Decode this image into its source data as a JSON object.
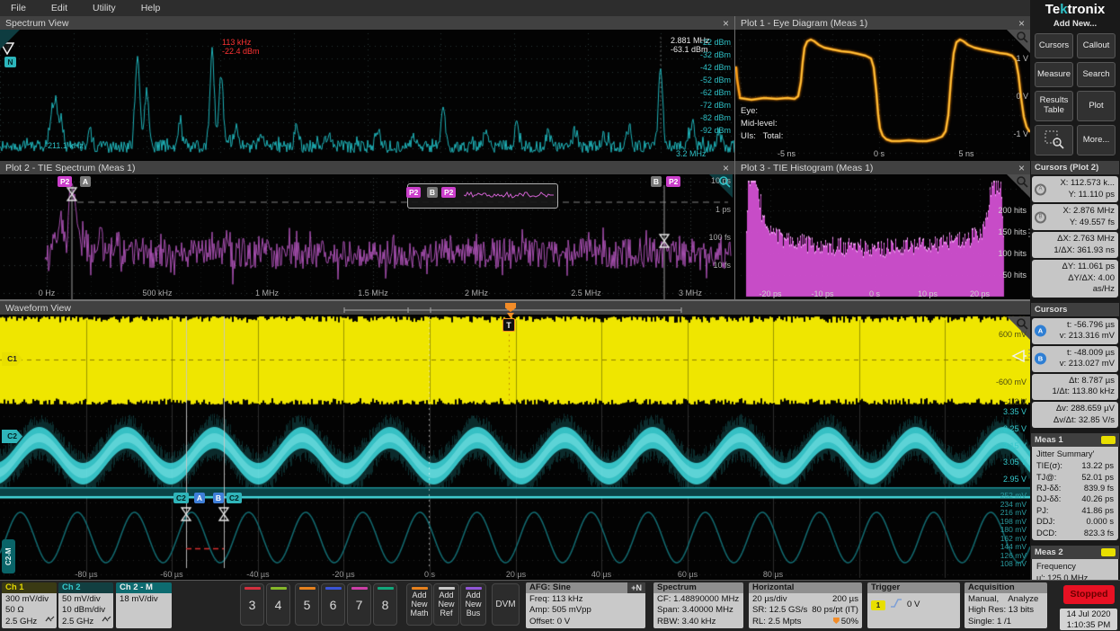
{
  "menu": {
    "items": [
      "File",
      "Edit",
      "Utility",
      "Help"
    ]
  },
  "ui": {
    "close": "×",
    "a": "A",
    "b": "B",
    "n_badge": "N",
    "r_marker": "R",
    "t_flag": "T",
    "c1": "C1",
    "c2": "C2",
    "c2m": "C2-M",
    "p2": "P2",
    "handle_dots": "⋮",
    "trig_src": "1",
    "plus_n": "+N"
  },
  "colors": {
    "ch1": "#e8df00",
    "ch2": "#2fb5ba",
    "ch2m": "#0e7074",
    "c3": "#d2303e",
    "c4": "#86b829",
    "c5": "#e8821e",
    "c6": "#3a54d6",
    "c7": "#cc3fa8",
    "c8": "#12a87c",
    "math": "#e8821e",
    "ref": "#c9c9c9",
    "bus": "#9257d8",
    "stopped_red": "#e81123",
    "trace_spectrum": "#1fb3b9",
    "trace_eye": "#ffa21a",
    "trace_tie": "#a74fb0",
    "trace_hist": "#d952d9",
    "cursor_blue": "#3f7fd9",
    "p2_magenta": "#cb3fcb",
    "marker_orange": "#f28c28"
  },
  "panels": {
    "spectrum_view": {
      "title": "Spectrum View",
      "marker_peak": {
        "freq": "113 kHz",
        "ampl": "-22.4 dBm"
      },
      "marker_ref": {
        "freq": "2.881 MHz",
        "ampl": "-63.1 dBm"
      },
      "left_edge": "-211.1 kHz",
      "right_edge": "3.2 MHz",
      "y_ticks": [
        "-22 dBm",
        "-32 dBm",
        "-42 dBm",
        "-52 dBm",
        "-62 dBm",
        "-72 dBm",
        "-82 dBm",
        "-92 dBm"
      ]
    },
    "plot1": {
      "title": "Plot 1 - Eye Diagram (Meas 1)",
      "labels": [
        "Eye:",
        "Mid-level:",
        "UIs:   Total:"
      ],
      "x_ticks": [
        "-5 ns",
        "0 s",
        "5 ns"
      ],
      "y_ticks": [
        "1 V",
        "0 V",
        "-1 V"
      ]
    },
    "plot2": {
      "title": "Plot 2 - TIE Spectrum (Meas 1)",
      "x_ticks": [
        "0 Hz",
        "500 kHz",
        "1 MHz",
        "1.5 MHz",
        "2 MHz",
        "2.5 MHz",
        "3 MHz"
      ],
      "y_ticks": [
        "10 ps",
        "1 ps",
        "100 fs",
        "10 fs"
      ]
    },
    "plot3": {
      "title": "Plot 3 - TIE Histogram (Meas 1)",
      "x_ticks": [
        "-20 ps",
        "-10 ps",
        "0 s",
        "10 ps",
        "20 ps"
      ],
      "y_ticks": [
        "200 hits",
        "150 hits",
        "100 hits",
        "50 hits"
      ]
    },
    "waveform": {
      "title": "Waveform View",
      "c1_scale": [
        "600 mV",
        "-600 mV",
        "-1.2 V"
      ],
      "c2_scale": [
        "3.35 V",
        "3.25 V",
        "3.15 V",
        "3.05 V",
        "2.95 V"
      ],
      "c2m_scale": [
        "252 mV",
        "234 mV",
        "216 mV",
        "198 mV",
        "180 mV",
        "162 mV",
        "144 mV",
        "126 mV",
        "108 mV"
      ],
      "x_ticks": [
        "-80 µs",
        "-60 µs",
        "-40 µs",
        "-20 µs",
        "0 s",
        "20 µs",
        "40 µs",
        "60 µs",
        "80 µs"
      ]
    }
  },
  "sidebar": {
    "brand_parts": [
      "Te",
      "k",
      "tronix"
    ],
    "add_new": "Add New...",
    "buttons": [
      "Cursors",
      "Callout",
      "Measure",
      "Search",
      "Results Table",
      "Plot",
      "",
      "More..."
    ],
    "cursors_plot2": {
      "title": "Cursors (Plot 2)",
      "a_x": "X: 112.573 k...",
      "a_y": "Y: 11.110 ps",
      "b_x": "X: 2.876 MHz",
      "b_y": "Y: 49.557 fs",
      "dx": "ΔX: 2.763 MHz",
      "inv_dx": "1/ΔX: 361.93 ns",
      "dy": "ΔY: 11.061 ps",
      "dydx": "ΔY/ΔX: 4.00 as/Hz"
    },
    "cursors": {
      "title": "Cursors",
      "a_t": "t: -56.796 µs",
      "a_v": "v: 213.316 mV",
      "b_t": "t: -48.009 µs",
      "b_v": "v: 213.027 mV",
      "dt": "Δt: 8.787 µs",
      "inv_dt": "1/Δt: 113.80 kHz",
      "dv": "Δv: 288.659 µV",
      "dvdt": "Δv/Δt: 32.85 V/s"
    },
    "meas1": {
      "title": "Meas 1",
      "subtitle": "Jitter Summary'",
      "rows": [
        [
          "TIE(σ):",
          "13.22 ps"
        ],
        [
          "TJ@:",
          "52.01 ps"
        ],
        [
          "RJ-δδ:",
          "839.9 fs"
        ],
        [
          "DJ-δδ:",
          "40.26 ps"
        ],
        [
          "PJ:",
          "41.86 ps"
        ],
        [
          "DDJ:",
          "0.000 s"
        ],
        [
          "DCD:",
          "823.3 fs"
        ]
      ]
    },
    "meas2": {
      "title": "Meas 2",
      "subtitle": "Frequency",
      "value": "µ': 125.0 MHz"
    }
  },
  "bottombar": {
    "ch1": {
      "label": "Ch 1",
      "lines": [
        "300 mV/div",
        "50 Ω",
        "2.5 GHz"
      ]
    },
    "ch2": {
      "label": "Ch 2",
      "lines": [
        "50 mV/div",
        "10 dBm/div",
        "2.5 GHz"
      ]
    },
    "ch2m": {
      "label": "Ch 2 - M",
      "lines": [
        "18 mV/div"
      ]
    },
    "channels": [
      {
        "label": "3",
        "color": "#d2303e"
      },
      {
        "label": "4",
        "color": "#86b829"
      },
      {
        "label": "5",
        "color": "#e8821e"
      },
      {
        "label": "6",
        "color": "#3a54d6"
      },
      {
        "label": "7",
        "color": "#cc3fa8"
      },
      {
        "label": "8",
        "color": "#12a87c"
      }
    ],
    "add_new": [
      {
        "lines": [
          "Add",
          "New",
          "Math"
        ],
        "color": "#e8821e"
      },
      {
        "lines": [
          "Add",
          "New",
          "Ref"
        ],
        "color": "#c9c9c9"
      },
      {
        "lines": [
          "Add",
          "New",
          "Bus"
        ],
        "color": "#9257d8"
      }
    ],
    "dvm": "DVM",
    "afg": {
      "title": "AFG: Sine",
      "lines": [
        "Freq: 113 kHz",
        "Amp: 505 mVpp",
        "Offset: 0 V"
      ]
    },
    "spectrum": {
      "title": "Spectrum",
      "lines": [
        "CF: 1.48890000 MHz",
        "Span: 3.40000 MHz",
        "RBW: 3.40 kHz"
      ]
    },
    "horizontal": {
      "title": "Horizontal",
      "rows": [
        [
          "20 µs/div",
          "200 µs"
        ],
        [
          "SR: 12.5 GS/s",
          "80 ps/pt (IT)"
        ],
        [
          "RL: 2.5 Mpts",
          "50%"
        ]
      ]
    },
    "trigger": {
      "title": "Trigger",
      "badge": "1",
      "value": "0 V"
    },
    "acquisition": {
      "title": "Acquisition",
      "lines": [
        "Manual,    Analyze",
        "High Res: 13 bits",
        "Single: 1 /1"
      ]
    },
    "stopped": "Stopped",
    "datetime": [
      "14 Jul 2020",
      "1:10:35 PM"
    ]
  },
  "chart_data": [
    {
      "type": "line",
      "title": "Spectrum View",
      "series_color": "#1fb3b9",
      "x_range": [
        "-211.1 kHz",
        "3.2 MHz"
      ],
      "y_ticks": [
        "-22 dBm",
        "-32 dBm",
        "-42 dBm",
        "-52 dBm",
        "-62 dBm",
        "-72 dBm",
        "-82 dBm",
        "-92 dBm"
      ],
      "features": "noise floor near -90 dBm with peaks; R marker peak 113 kHz at -22.4 dBm; reference marker 2.881 MHz at -63.1 dBm"
    },
    {
      "type": "line",
      "title": "Plot 1 - Eye Diagram (Meas 1)",
      "series_color": "#ffa21a",
      "x_ticks": [
        "-5 ns",
        "0 s",
        "5 ns"
      ],
      "y_ticks": [
        "1 V",
        "0 V",
        "-1 V"
      ],
      "features": "square eye trace, high ~1 V with overshoot, low ~-1 V, transitions near -4 ns, 0 ns, +4 ns"
    },
    {
      "type": "line",
      "title": "Plot 2 - TIE Spectrum (Meas 1)",
      "series_color": "#a74fb0",
      "x_ticks": [
        "0 Hz",
        "500 kHz",
        "1 MHz",
        "1.5 MHz",
        "2 MHz",
        "2.5 MHz",
        "3 MHz"
      ],
      "y_ticks": [
        "10 ps",
        "1 ps",
        "100 fs",
        "10 fs"
      ],
      "cursors": {
        "a": {
          "x": "112.573 kHz",
          "y": "11.110 ps"
        },
        "b": {
          "x": "2.876 MHz",
          "y": "49.557 fs"
        }
      },
      "features": "noise band near 10-100 fs with dominant peak ~11 ps at ~113 kHz"
    },
    {
      "type": "histogram",
      "title": "Plot 3 - TIE Histogram (Meas 1)",
      "series_color": "#d952d9",
      "x_ticks": [
        "-20 ps",
        "-10 ps",
        "0 s",
        "10 ps",
        "20 ps"
      ],
      "y_ticks": [
        "200 hits",
        "150 hits",
        "100 hits",
        "50 hits"
      ],
      "features": "bathtub distribution, edge peaks ~230-270 hits at ±20 ps, central valley ~100 hits"
    },
    {
      "type": "waveform",
      "title": "Waveform View",
      "x_ticks": [
        "-80 µs",
        "-60 µs",
        "-40 µs",
        "-20 µs",
        "0 s",
        "20 µs",
        "40 µs",
        "60 µs",
        "80 µs"
      ],
      "channels": [
        {
          "name": "Ch 1",
          "color": "#e8df00",
          "scale": "300 mV/div",
          "appearance": "solid band ±600 mV (dense 125 MHz square wave)"
        },
        {
          "name": "Ch 2",
          "color": "#2fb5ba",
          "scale": "50 mV/div",
          "appearance": "fuzzy band ~3.05 V with ~113 kHz ripple"
        },
        {
          "name": "Ch 2 - M",
          "color": "#0e7074",
          "scale": "18 mV/div",
          "appearance": "sine ~108-252 mV, period ~13 µs"
        }
      ],
      "cursors": {
        "a": "-56.796 µs",
        "b": "-48.009 µs"
      }
    }
  ]
}
